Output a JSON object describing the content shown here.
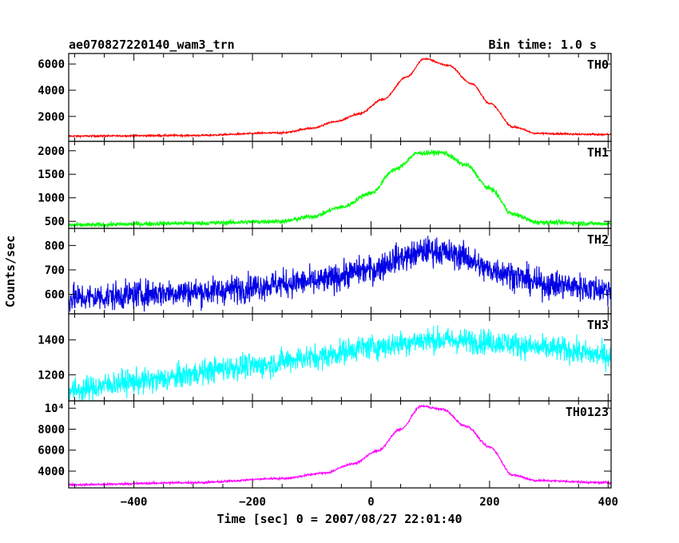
{
  "header": {
    "title": "ae070827220140_wam3_trn",
    "bin_time": "Bin time: 1.0 s"
  },
  "axes": {
    "xlabel": "Time [sec] 0 = 2007/08/27 22:01:40",
    "ylabel": "Counts/sec"
  },
  "chart_data": {
    "type": "line",
    "xlim": [
      -510,
      405
    ],
    "x_ticks": [
      -400,
      -200,
      0,
      200,
      400
    ],
    "panels": [
      {
        "name": "TH0",
        "color": "#ff0000",
        "ylim": [
          100,
          6800
        ],
        "y_ticks": [
          2000,
          4000,
          6000
        ],
        "y_tick_labels": [
          "2000",
          "4000",
          "6000"
        ],
        "noise": 45,
        "profile": [
          [
            -510,
            500
          ],
          [
            -300,
            550
          ],
          [
            -150,
            750
          ],
          [
            -100,
            1100
          ],
          [
            -60,
            1600
          ],
          [
            -20,
            2200
          ],
          [
            20,
            3300
          ],
          [
            60,
            5000
          ],
          [
            90,
            6400
          ],
          [
            130,
            5900
          ],
          [
            170,
            4500
          ],
          [
            200,
            3000
          ],
          [
            240,
            1200
          ],
          [
            280,
            700
          ],
          [
            400,
            620
          ]
        ]
      },
      {
        "name": "TH1",
        "color": "#00ff00",
        "ylim": [
          350,
          2200
        ],
        "y_ticks": [
          500,
          1000,
          1500,
          2000
        ],
        "y_tick_labels": [
          "500",
          "1000",
          "1500",
          "2000"
        ],
        "noise": 35,
        "profile": [
          [
            -510,
            420
          ],
          [
            -300,
            460
          ],
          [
            -150,
            500
          ],
          [
            -100,
            600
          ],
          [
            -50,
            800
          ],
          [
            0,
            1100
          ],
          [
            40,
            1600
          ],
          [
            80,
            1950
          ],
          [
            120,
            1960
          ],
          [
            160,
            1700
          ],
          [
            200,
            1200
          ],
          [
            240,
            650
          ],
          [
            280,
            480
          ],
          [
            400,
            450
          ]
        ]
      },
      {
        "name": "TH2",
        "color": "#0000e6",
        "ylim": [
          520,
          870
        ],
        "y_ticks": [
          600,
          700,
          800
        ],
        "y_tick_labels": [
          "600",
          "700",
          "800"
        ],
        "noise": 40,
        "profile": [
          [
            -510,
            585
          ],
          [
            -300,
            610
          ],
          [
            -100,
            650
          ],
          [
            0,
            700
          ],
          [
            50,
            750
          ],
          [
            100,
            780
          ],
          [
            150,
            760
          ],
          [
            200,
            700
          ],
          [
            300,
            640
          ],
          [
            400,
            620
          ]
        ]
      },
      {
        "name": "TH3",
        "color": "#00ffff",
        "ylim": [
          1050,
          1550
        ],
        "y_ticks": [
          1200,
          1400
        ],
        "y_tick_labels": [
          "1200",
          "1400"
        ],
        "noise": 50,
        "profile": [
          [
            -510,
            1110
          ],
          [
            -400,
            1160
          ],
          [
            -200,
            1250
          ],
          [
            -100,
            1300
          ],
          [
            0,
            1360
          ],
          [
            100,
            1400
          ],
          [
            200,
            1390
          ],
          [
            300,
            1350
          ],
          [
            400,
            1310
          ]
        ]
      },
      {
        "name": "TH0123",
        "color": "#ff00ff",
        "ylim": [
          2400,
          10700
        ],
        "y_ticks": [
          4000,
          6000,
          8000,
          10000
        ],
        "y_tick_labels": [
          "4000",
          "6000",
          "8000",
          "10⁴"
        ],
        "noise": 70,
        "profile": [
          [
            -510,
            2700
          ],
          [
            -300,
            2900
          ],
          [
            -150,
            3300
          ],
          [
            -80,
            3800
          ],
          [
            -30,
            4700
          ],
          [
            10,
            5900
          ],
          [
            50,
            8000
          ],
          [
            85,
            10200
          ],
          [
            120,
            9900
          ],
          [
            160,
            8300
          ],
          [
            200,
            6300
          ],
          [
            240,
            3600
          ],
          [
            280,
            3100
          ],
          [
            400,
            2900
          ]
        ]
      }
    ]
  }
}
